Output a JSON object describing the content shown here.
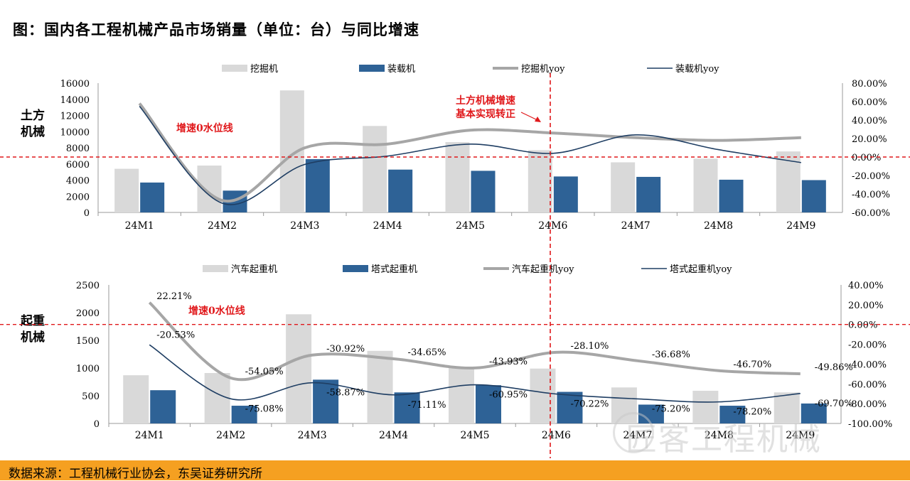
{
  "title": "图：国内各工程机械产品市场销量（单位：台）与同比增速",
  "source": "数据来源：工程机械行业协会，东吴证券研究所",
  "watermark": "匠客工程机械",
  "colors": {
    "light_bar": "#d9d9d9",
    "dark_bar": "#2e6296",
    "gray_line": "#a6a6a6",
    "dark_line": "#1f3e63",
    "red": "#e0181b",
    "footer": "#f5a021"
  },
  "chart_data": [
    {
      "type": "bar",
      "panel_label": "土方机械",
      "categories": [
        "24M1",
        "24M2",
        "24M3",
        "24M4",
        "24M5",
        "24M6",
        "24M7",
        "24M8",
        "24M9"
      ],
      "series": [
        {
          "name": "挖掘机",
          "kind": "bar",
          "axis": "left",
          "values": [
            5400,
            5800,
            15100,
            10700,
            8700,
            7700,
            6200,
            6650,
            7550
          ]
        },
        {
          "name": "装载机",
          "kind": "bar",
          "axis": "left",
          "values": [
            3700,
            2700,
            6600,
            5300,
            5150,
            4450,
            4400,
            4050,
            4000
          ]
        },
        {
          "name": "挖掘机yoy",
          "kind": "line",
          "axis": "right",
          "values": [
            58.0,
            -47.0,
            10.0,
            14.0,
            29.0,
            26.0,
            21.0,
            18.0,
            21.0
          ]
        },
        {
          "name": "装载机yoy",
          "kind": "line",
          "axis": "right",
          "values": [
            55.0,
            -50.0,
            -8.0,
            1.0,
            14.0,
            4.0,
            24.0,
            8.0,
            -6.0
          ]
        }
      ],
      "left_ticks": [
        "0",
        "2000",
        "4000",
        "6000",
        "8000",
        "10000",
        "12000",
        "14000",
        "16000"
      ],
      "right_ticks": [
        "-60.00%",
        "-40.00%",
        "-20.00%",
        "0.00%",
        "20.00%",
        "40.00%",
        "60.00%",
        "80.00%"
      ],
      "ylim_left": [
        0,
        16000
      ],
      "ylim_right": [
        -60,
        80
      ],
      "zero_line_label": "增速0水位线",
      "annotation_lines": [
        "土方机械增速",
        "基本实现转正"
      ]
    },
    {
      "type": "bar",
      "panel_label": "起重机械",
      "categories": [
        "24M1",
        "24M2",
        "24M3",
        "24M4",
        "24M5",
        "24M6",
        "24M7",
        "24M8",
        "24M9"
      ],
      "series": [
        {
          "name": "汽车起重机",
          "kind": "bar",
          "axis": "left",
          "values": [
            870,
            910,
            1970,
            1310,
            1010,
            990,
            650,
            590,
            560
          ]
        },
        {
          "name": "塔式起重机",
          "kind": "bar",
          "axis": "left",
          "values": [
            600,
            320,
            790,
            560,
            690,
            570,
            340,
            320,
            360
          ]
        },
        {
          "name": "汽车起重机yoy",
          "kind": "line",
          "axis": "right",
          "values": [
            22.21,
            -54.05,
            -30.92,
            -34.65,
            -43.93,
            -28.1,
            -36.68,
            -46.7,
            -49.86
          ],
          "labels": [
            "22.21%",
            "-54.05%",
            "-30.92%",
            "-34.65%",
            "-43.93%",
            "-28.10%",
            "-36.68%",
            "-46.70%",
            "-49.86%"
          ]
        },
        {
          "name": "塔式起重机yoy",
          "kind": "line",
          "axis": "right",
          "values": [
            -20.53,
            -75.08,
            -58.87,
            -71.11,
            -60.95,
            -70.22,
            -75.2,
            -78.2,
            -69.7
          ],
          "labels": [
            "-20.53%",
            "-75.08%",
            "-58.87%",
            "-71.11%",
            "-60.95%",
            "-70.22%",
            "-75.20%",
            "-78.20%",
            "-69.70%"
          ]
        }
      ],
      "left_ticks": [
        "0",
        "500",
        "1000",
        "1500",
        "2000",
        "2500"
      ],
      "right_ticks": [
        "-100.00%",
        "-80.00%",
        "-60.00%",
        "-40.00%",
        "-20.00%",
        "0.00%",
        "20.00%",
        "40.00%"
      ],
      "ylim_left": [
        0,
        2500
      ],
      "ylim_right": [
        -100,
        40
      ],
      "zero_line_label": "增速0水位线"
    }
  ]
}
